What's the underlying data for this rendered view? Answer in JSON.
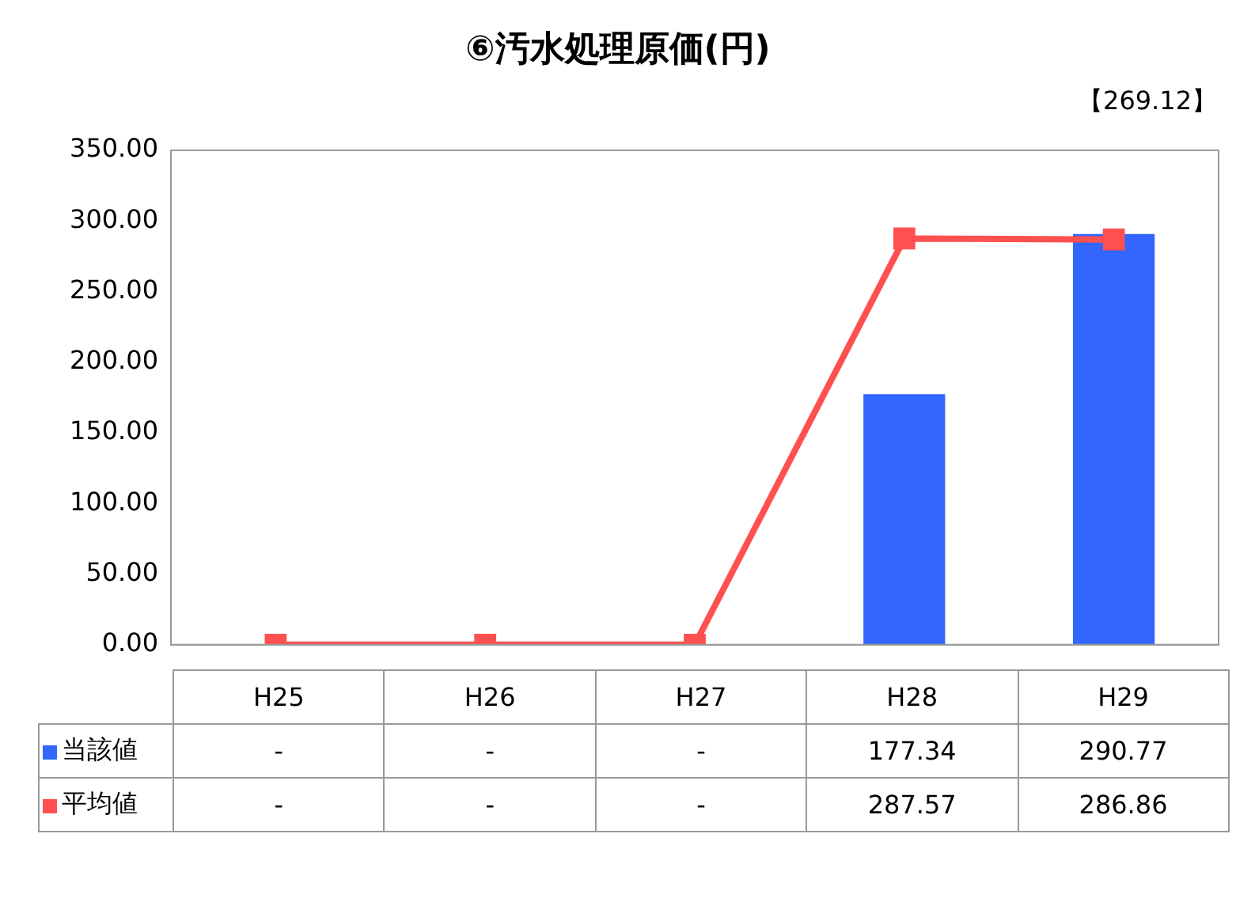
{
  "chart_data": {
    "type": "bar",
    "title": "⑥汚水処理原価(円)",
    "annotations": [
      "【269.12】"
    ],
    "categories": [
      "H25",
      "H26",
      "H27",
      "H28",
      "H29"
    ],
    "series": [
      {
        "name": "当該値",
        "color": "#3366ff",
        "values": [
          null,
          null,
          null,
          177.34,
          290.77
        ],
        "value_labels": [
          "-",
          "-",
          "-",
          "177.34",
          "290.77"
        ]
      },
      {
        "name": "平均値",
        "type": "line",
        "color": "#ff5050",
        "marker": "square",
        "values": [
          0,
          0,
          0,
          287.57,
          286.86
        ],
        "value_labels": [
          "-",
          "-",
          "-",
          "287.57",
          "286.86"
        ]
      }
    ],
    "ylim": [
      0,
      350
    ],
    "yticks": [
      {
        "value": 0,
        "label": "0.00"
      },
      {
        "value": 50,
        "label": "50.00"
      },
      {
        "value": 100,
        "label": "100.00"
      },
      {
        "value": 150,
        "label": "150.00"
      },
      {
        "value": 200,
        "label": "200.00"
      },
      {
        "value": 250,
        "label": "250.00"
      },
      {
        "value": 300,
        "label": "300.00"
      },
      {
        "value": 350,
        "label": "350.00"
      }
    ],
    "grid": false,
    "legend": "bottom left"
  }
}
